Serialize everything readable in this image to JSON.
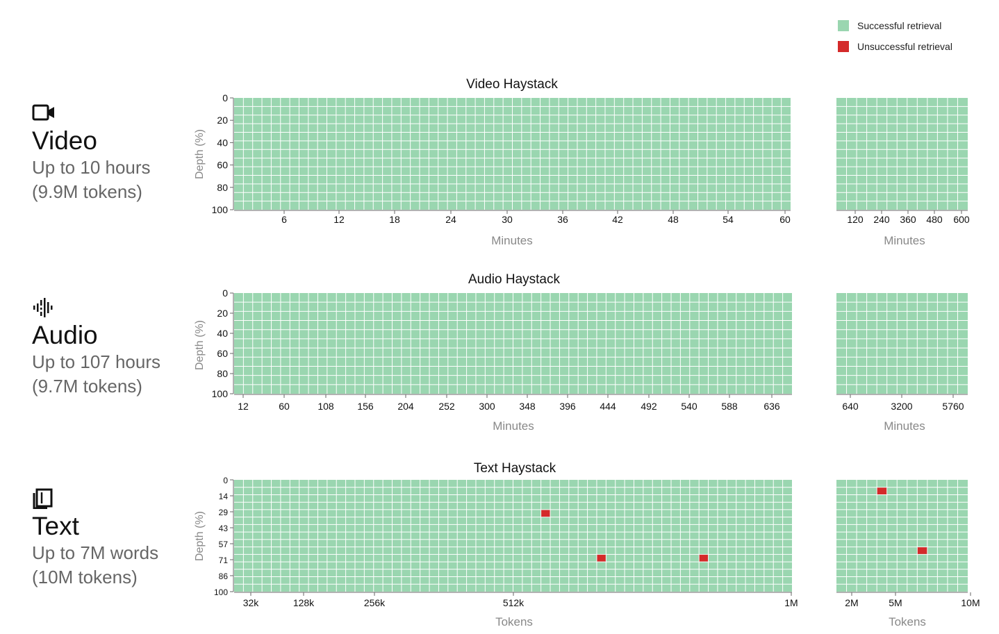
{
  "legend": {
    "success_label": "Successful retrieval",
    "fail_label": "Unsuccessful retrieval",
    "success_color": "#9ad6b0",
    "fail_color": "#d42a2a",
    "grid_line_color": "#ffffff"
  },
  "rows": [
    {
      "icon": "video-camera-icon",
      "name": "Video",
      "line1": "Up to 10 hours",
      "line2": "(9.9M tokens)"
    },
    {
      "icon": "audio-waveform-icon",
      "name": "Audio",
      "line1": "Up to 107 hours",
      "line2": "(9.7M tokens)"
    },
    {
      "icon": "pages-icon",
      "name": "Text",
      "line1": "Up to 7M words",
      "line2": "(10M tokens)"
    }
  ],
  "chart_data": [
    {
      "type": "heatmap",
      "title": "Video Haystack",
      "ylabel": "Depth (%)",
      "y_ticks": [
        "0",
        "20",
        "40",
        "60",
        "80",
        "100"
      ],
      "panels": [
        {
          "xlabel": "Minutes",
          "x_ticks": [
            "6",
            "12",
            "18",
            "24",
            "30",
            "36",
            "42",
            "48",
            "54",
            "60"
          ],
          "x_range": [
            0.5,
            60.5
          ],
          "cols": 60,
          "rows": 13,
          "failures": []
        },
        {
          "xlabel": "Minutes",
          "x_ticks": [
            "120",
            "240",
            "360",
            "480",
            "600"
          ],
          "x_range": [
            60,
            600
          ],
          "cols": 13,
          "rows": 13,
          "failures": []
        }
      ]
    },
    {
      "type": "heatmap",
      "title": "Audio Haystack",
      "ylabel": "Depth (%)",
      "y_ticks": [
        "0",
        "20",
        "40",
        "60",
        "80",
        "100"
      ],
      "panels": [
        {
          "xlabel": "Minutes",
          "x_ticks": [
            "12",
            "60",
            "108",
            "156",
            "204",
            "252",
            "300",
            "348",
            "396",
            "444",
            "492",
            "540",
            "588",
            "636"
          ],
          "x_range": [
            0,
            660
          ],
          "cols": 60,
          "rows": 11,
          "failures": []
        },
        {
          "xlabel": "Minutes",
          "x_ticks": [
            "640",
            "3200",
            "5760"
          ],
          "x_range": [
            0,
            6400
          ],
          "cols": 13,
          "rows": 11,
          "failures": []
        }
      ]
    },
    {
      "type": "heatmap",
      "title": "Text Haystack",
      "ylabel": "Depth (%)",
      "y_ticks": [
        "0",
        "14",
        "29",
        "43",
        "57",
        "71",
        "86",
        "100"
      ],
      "panels": [
        {
          "xlabel": "Tokens",
          "x_ticks": [
            "32k",
            "128k",
            "256k",
            "512k",
            "1M"
          ],
          "x_range": [
            0,
            1
          ],
          "cols": 60,
          "rows": 15,
          "failures": [
            [
              33,
              4
            ],
            [
              39,
              10
            ],
            [
              50,
              10
            ]
          ]
        },
        {
          "xlabel": "Tokens",
          "x_ticks": [
            "2M",
            "5M",
            "10M"
          ],
          "x_range": [
            0,
            1
          ],
          "cols": 13,
          "rows": 15,
          "failures": [
            [
              4,
              1
            ],
            [
              8,
              9
            ]
          ]
        }
      ]
    }
  ]
}
